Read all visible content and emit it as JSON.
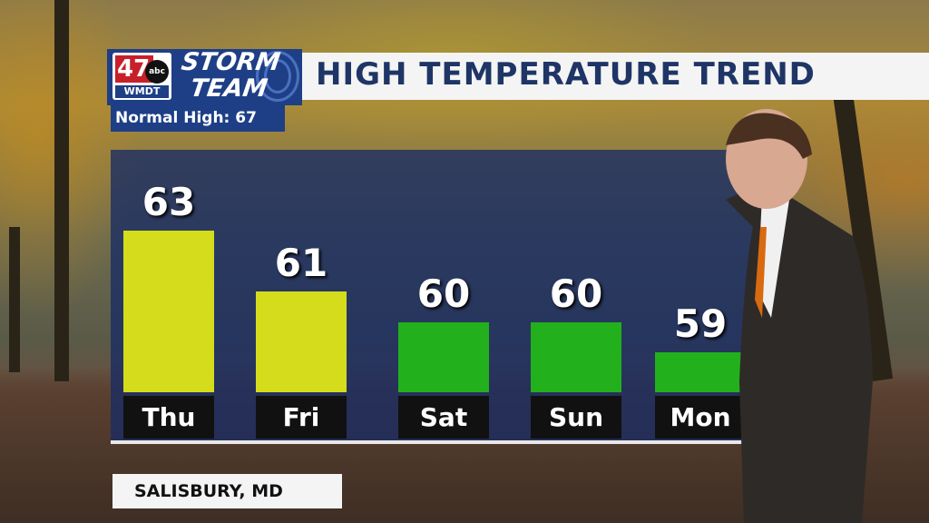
{
  "header": {
    "title": "HIGH TEMPERATURE TREND"
  },
  "logo": {
    "channel": "47",
    "network": "abc",
    "station": "WMDT",
    "brand_line1": "STORM",
    "brand_line2": "TEAM"
  },
  "normal_high": "Normal High: 67",
  "location": "SALISBURY, MD",
  "colors": {
    "header_blue": "#1e3566",
    "panel": "#182c64",
    "yellow_bar": "#d4dc1c",
    "green_bar": "#22b01c"
  },
  "chart_data": {
    "type": "bar",
    "title": "HIGH TEMPERATURE TREND",
    "categories": [
      "Thu",
      "Fri",
      "Sat",
      "Sun",
      "Mon"
    ],
    "values": [
      63,
      61,
      60,
      60,
      59
    ],
    "bar_colors": [
      "#d4dc1c",
      "#d4dc1c",
      "#22b01c",
      "#22b01c",
      "#22b01c"
    ],
    "data_labels": [
      "63",
      "61",
      "60",
      "60",
      "59"
    ],
    "xlabel": "",
    "ylabel": "",
    "grid": false
  }
}
